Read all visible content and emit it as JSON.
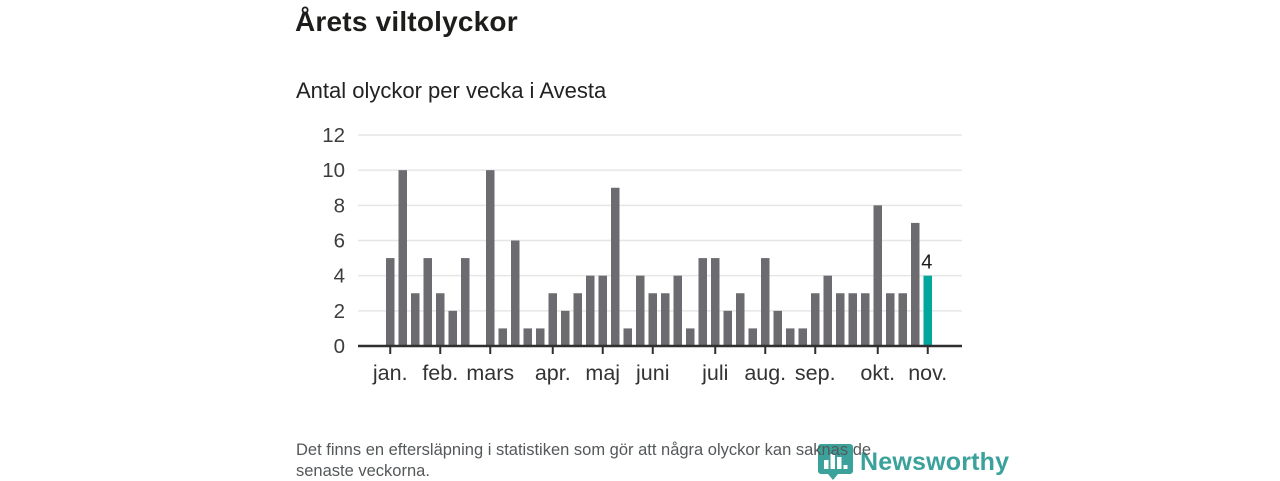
{
  "header": {
    "title": "Årets viltolyckor",
    "subtitle": "Antal olyckor per vecka i Avesta"
  },
  "chart_data": {
    "type": "bar",
    "title": "Årets viltolyckor",
    "subtitle": "Antal olyckor per vecka i Avesta",
    "xlabel": "",
    "ylabel": "",
    "ylim": [
      0,
      12
    ],
    "yticks": [
      0,
      2,
      4,
      6,
      8,
      10,
      12
    ],
    "grid": "horizontal",
    "categories_note": "one bar per week, january through early november",
    "values": [
      5,
      10,
      3,
      5,
      3,
      2,
      5,
      0,
      10,
      1,
      6,
      1,
      1,
      3,
      2,
      3,
      4,
      4,
      9,
      1,
      4,
      3,
      3,
      4,
      1,
      5,
      5,
      2,
      3,
      1,
      5,
      2,
      1,
      1,
      3,
      4,
      3,
      3,
      3,
      8,
      3,
      3,
      7,
      4
    ],
    "month_ticks": [
      {
        "label": "jan.",
        "week_index": 0
      },
      {
        "label": "feb.",
        "week_index": 4
      },
      {
        "label": "mars",
        "week_index": 8
      },
      {
        "label": "apr.",
        "week_index": 13
      },
      {
        "label": "maj",
        "week_index": 17
      },
      {
        "label": "juni",
        "week_index": 21
      },
      {
        "label": "juli",
        "week_index": 26
      },
      {
        "label": "aug.",
        "week_index": 30
      },
      {
        "label": "sep.",
        "week_index": 34
      },
      {
        "label": "okt.",
        "week_index": 39
      },
      {
        "label": "nov.",
        "week_index": 43
      }
    ],
    "bar_color": "#6b6b70",
    "highlight_index": 43,
    "highlight_color": "#00a79c",
    "highlight_label": "4",
    "gridline_color": "#e6e6e6",
    "axis_line_color": "#2f2f2f",
    "axis_text_color": "#3d3d3d"
  },
  "footer": {
    "note_line1": "Det finns en eftersläpning i statistiken som gör att några olyckor kan saknas de",
    "note_line2": "senaste veckorna.",
    "logo_text": "Newsworthy"
  }
}
